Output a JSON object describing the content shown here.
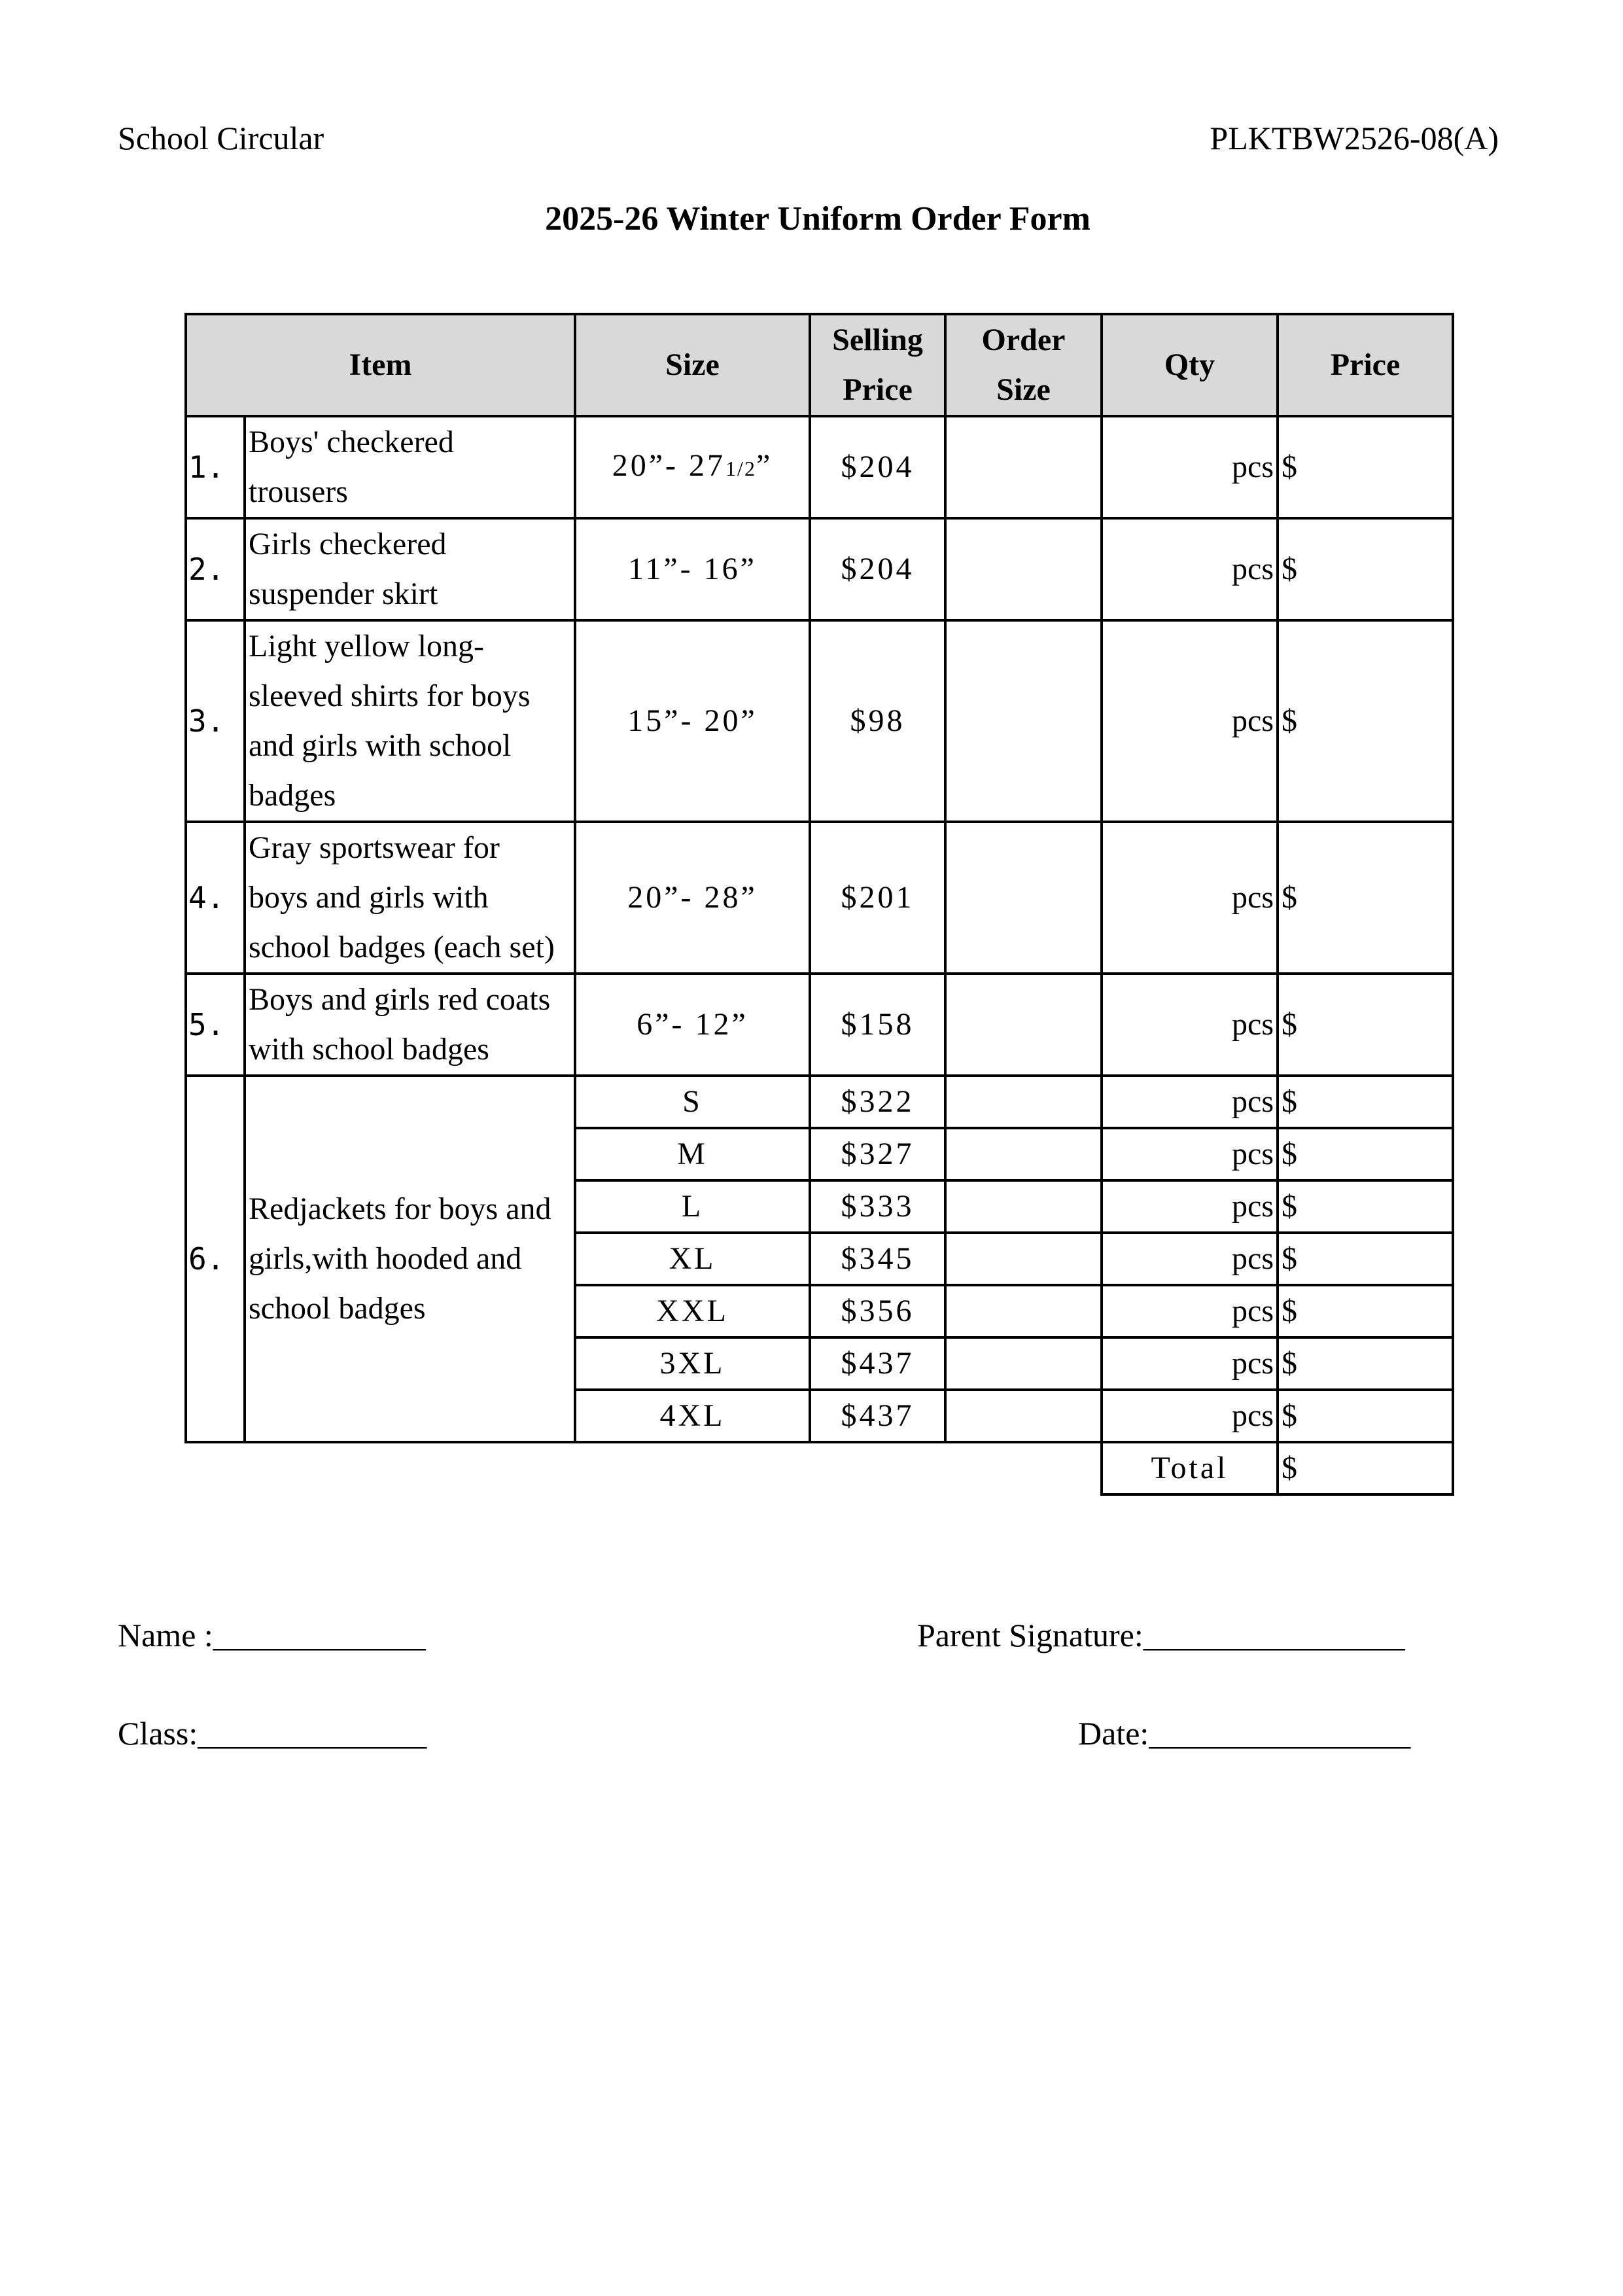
{
  "header": {
    "left": "School Circular",
    "right": "PLKTBW2526-08(A)"
  },
  "title": "2025-26 Winter Uniform Order Form",
  "table": {
    "columns": {
      "item": "Item",
      "size": "Size",
      "selling_price": [
        "Selling",
        "Price"
      ],
      "order_size": [
        "Order",
        "Size"
      ],
      "qty": "Qty",
      "price": "Price"
    },
    "qty_unit": "pcs",
    "price_prefix": "$",
    "rows": [
      {
        "no": "1.",
        "item": [
          "Boys' checkered",
          "trousers"
        ],
        "size": "20”- 27",
        "size_frac": "1/2",
        "size_end": "”",
        "price": "$204"
      },
      {
        "no": "2.",
        "item": [
          "Girls checkered",
          "suspender skirt"
        ],
        "size": "11”- 16”",
        "price": "$204"
      },
      {
        "no": "3.",
        "item": [
          "Light yellow long-",
          "sleeved shirts for boys",
          "and girls with school",
          "badges"
        ],
        "size": "15”- 20”",
        "price": "$98"
      },
      {
        "no": "4.",
        "item": [
          "Gray sportswear for",
          "boys and girls with",
          "school badges (each set)"
        ],
        "size": "20”- 28”",
        "price": "$201"
      },
      {
        "no": "5.",
        "item": [
          "Boys and girls red coats",
          "with school badges"
        ],
        "size": "6”- 12”",
        "price": "$158"
      }
    ],
    "jacket": {
      "no": "6.",
      "item": [
        "Redjackets for boys and",
        "girls,with hooded and",
        "school badges"
      ],
      "sizes": [
        {
          "size": "S",
          "price": "$322"
        },
        {
          "size": "M",
          "price": "$327"
        },
        {
          "size": "L",
          "price": "$333"
        },
        {
          "size": "XL",
          "price": "$345"
        },
        {
          "size": "XXL",
          "price": "$356"
        },
        {
          "size": "3XL",
          "price": "$437"
        },
        {
          "size": "4XL",
          "price": "$437"
        }
      ]
    },
    "total_label": "Total"
  },
  "footer": {
    "name": "Name :_____________",
    "parent_signature": "Parent Signature:________________",
    "class": "Class:______________",
    "date": "Date:________________"
  }
}
